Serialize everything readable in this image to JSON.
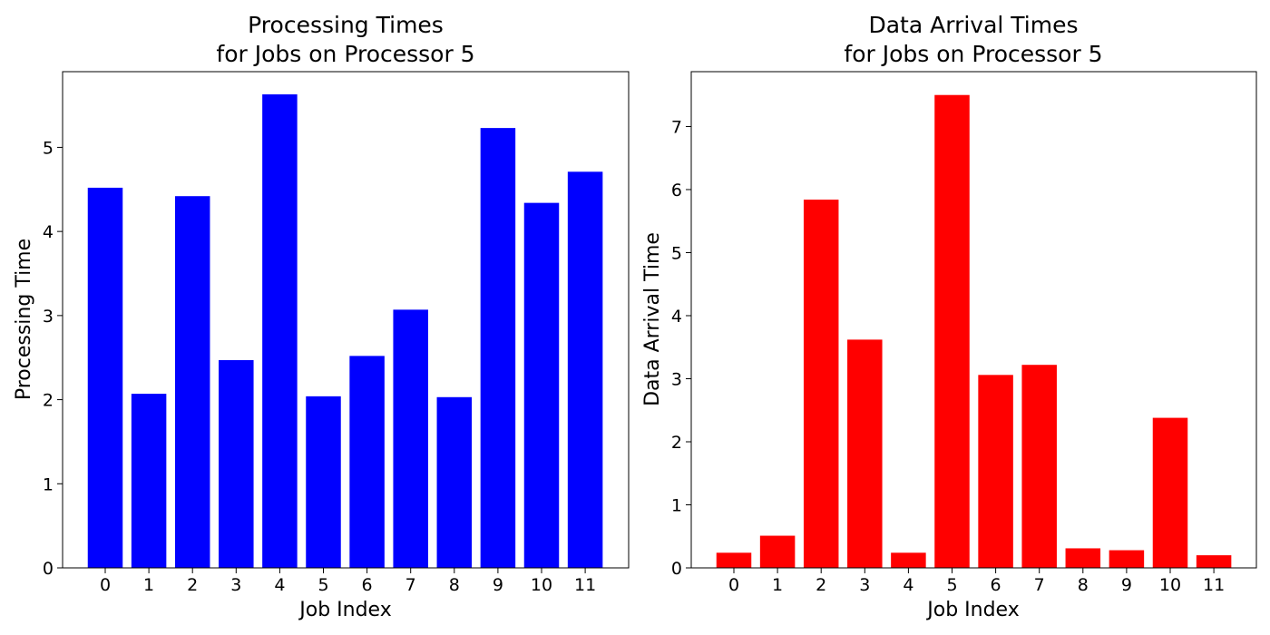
{
  "chart_data": [
    {
      "type": "bar",
      "title_line1": "Processing Times",
      "title_line2": "for Jobs on Processor 5",
      "xlabel": "Job Index",
      "ylabel": "Processing Time",
      "categories": [
        "0",
        "1",
        "2",
        "3",
        "4",
        "5",
        "6",
        "7",
        "8",
        "9",
        "10",
        "11"
      ],
      "values": [
        4.52,
        2.07,
        4.42,
        2.47,
        5.63,
        2.04,
        2.52,
        3.07,
        2.03,
        5.23,
        4.34,
        4.71
      ],
      "ylim": [
        0,
        5.9
      ],
      "yticks": [
        0,
        1,
        2,
        3,
        4,
        5
      ],
      "color": "#0000ff",
      "grid": false,
      "legend": false
    },
    {
      "type": "bar",
      "title_line1": "Data Arrival Times",
      "title_line2": "for Jobs on Processor 5",
      "xlabel": "Job Index",
      "ylabel": "Data Arrival Time",
      "categories": [
        "0",
        "1",
        "2",
        "3",
        "4",
        "5",
        "6",
        "7",
        "8",
        "9",
        "10",
        "11"
      ],
      "values": [
        0.24,
        0.51,
        5.84,
        3.62,
        0.24,
        7.5,
        3.06,
        3.22,
        0.31,
        0.28,
        2.38,
        0.2
      ],
      "ylim": [
        0,
        7.87
      ],
      "yticks": [
        0,
        1,
        2,
        3,
        4,
        5,
        6,
        7
      ],
      "color": "#ff0000",
      "grid": false,
      "legend": false
    }
  ]
}
